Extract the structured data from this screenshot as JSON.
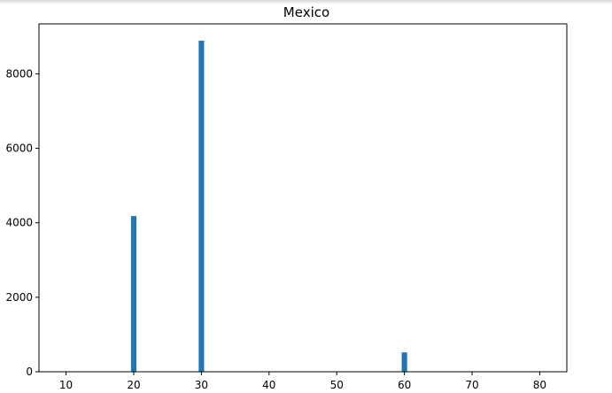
{
  "chart_data": {
    "type": "bar",
    "title": "Mexico",
    "xlabel": "",
    "ylabel": "",
    "x": [
      20,
      30,
      60
    ],
    "values": [
      4180,
      8890,
      520
    ],
    "bar_width": 0.8,
    "xlim": [
      6,
      84
    ],
    "ylim": [
      0,
      9340
    ],
    "xticks": [
      10,
      20,
      30,
      40,
      50,
      60,
      70,
      80
    ],
    "yticks": [
      0,
      2000,
      4000,
      6000,
      8000
    ],
    "grid": false,
    "colors": {
      "bar": "#1f77b4",
      "axes": "#000000"
    }
  }
}
